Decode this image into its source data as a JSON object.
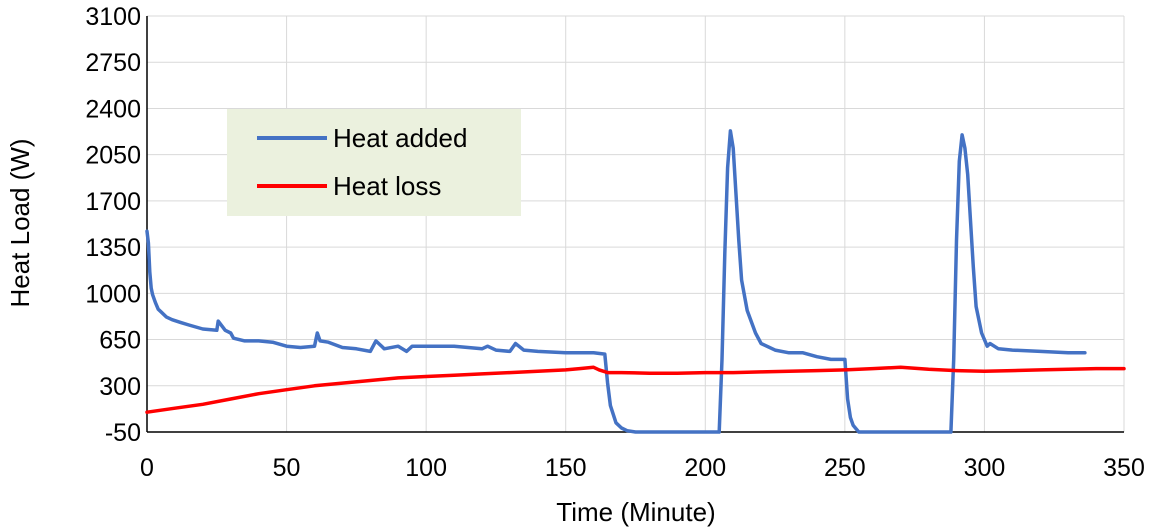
{
  "chart_data": {
    "type": "line",
    "title": "",
    "xlabel": "Time (Minute)",
    "ylabel": "Heat Load (W)",
    "xlim": [
      0,
      350
    ],
    "ylim": [
      -50,
      3100
    ],
    "xticks": [
      0,
      50,
      100,
      150,
      200,
      250,
      300,
      350
    ],
    "yticks": [
      -50,
      300,
      650,
      1000,
      1350,
      1700,
      2050,
      2400,
      2750,
      3100
    ],
    "xtick_labels": [
      "0",
      "50",
      "100",
      "150",
      "200",
      "250",
      "300",
      "350"
    ],
    "ytick_labels": [
      "-50",
      "300",
      "650",
      "1000",
      "1350",
      "1700",
      "2050",
      "2400",
      "2750",
      "3100"
    ],
    "grid": true,
    "legend_position": "top-left",
    "series": [
      {
        "name": "Heat added",
        "color": "#4472c4",
        "x": [
          0,
          0.5,
          1,
          1.5,
          2,
          3,
          4,
          5,
          7,
          9,
          12,
          15,
          20,
          25,
          25.5,
          28,
          30,
          31,
          35,
          40,
          45,
          50,
          55,
          60,
          61,
          62,
          65,
          70,
          75,
          80,
          82,
          85,
          90,
          93,
          95,
          100,
          110,
          120,
          122,
          125,
          130,
          132,
          135,
          140,
          150,
          160,
          164,
          165,
          166,
          168,
          170,
          172,
          175,
          180,
          190,
          200,
          205,
          206,
          207,
          208,
          209,
          210,
          211,
          212,
          213,
          215,
          218,
          220,
          225,
          230,
          235,
          240,
          245,
          250,
          251,
          252,
          253,
          255,
          260,
          270,
          280,
          288,
          289,
          290,
          291,
          292,
          293,
          294,
          295,
          296,
          297,
          299,
          300,
          301,
          302,
          305,
          310,
          320,
          330,
          336
        ],
        "y": [
          1470,
          1380,
          1160,
          1040,
          990,
          930,
          880,
          860,
          820,
          800,
          780,
          760,
          730,
          720,
          790,
          720,
          700,
          660,
          640,
          640,
          630,
          600,
          590,
          600,
          700,
          640,
          630,
          590,
          580,
          560,
          640,
          580,
          600,
          560,
          600,
          600,
          600,
          580,
          600,
          570,
          560,
          620,
          570,
          560,
          550,
          550,
          540,
          320,
          150,
          20,
          -20,
          -40,
          -50,
          -50,
          -50,
          -50,
          -50,
          500,
          1300,
          1950,
          2230,
          2100,
          1750,
          1400,
          1100,
          870,
          700,
          620,
          570,
          550,
          550,
          520,
          500,
          500,
          200,
          60,
          0,
          -50,
          -50,
          -50,
          -50,
          -50,
          500,
          1400,
          2000,
          2200,
          2100,
          1900,
          1550,
          1200,
          900,
          700,
          650,
          600,
          620,
          580,
          570,
          560,
          550,
          550
        ]
      },
      {
        "name": "Heat loss",
        "color": "#ff0000",
        "x": [
          0,
          10,
          20,
          30,
          40,
          50,
          60,
          70,
          80,
          90,
          100,
          110,
          120,
          130,
          140,
          150,
          155,
          160,
          162,
          165,
          170,
          180,
          190,
          200,
          210,
          220,
          230,
          240,
          250,
          260,
          270,
          280,
          290,
          300,
          310,
          320,
          330,
          340,
          350
        ],
        "y": [
          100,
          130,
          160,
          200,
          240,
          270,
          300,
          320,
          340,
          360,
          370,
          380,
          390,
          400,
          410,
          420,
          430,
          440,
          420,
          400,
          400,
          395,
          395,
          400,
          400,
          405,
          410,
          415,
          420,
          430,
          440,
          425,
          415,
          410,
          415,
          420,
          425,
          430,
          430
        ]
      }
    ]
  }
}
